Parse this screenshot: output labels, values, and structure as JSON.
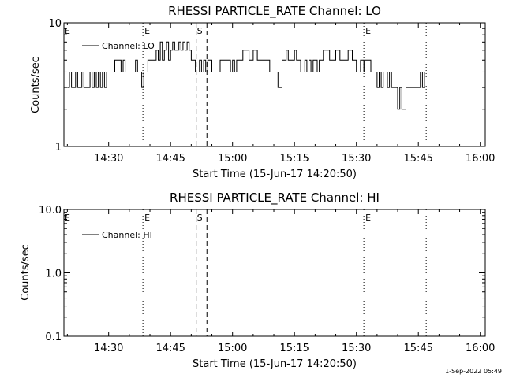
{
  "footer_timestamp": "1-Sep-2022 05:49",
  "chart_data": [
    {
      "type": "line",
      "title": "RHESSI PARTICLE_RATE Channel: LO",
      "xlabel": "Start Time (15-Jun-17 14:20:50)",
      "ylabel": "Counts/sec",
      "yscale": "log",
      "ylim": [
        1,
        10
      ],
      "xlim_minutes": [
        -0.83,
        87.0
      ],
      "xticks": [
        {
          "minutes": 10,
          "label": "14:30"
        },
        {
          "minutes": 25,
          "label": "14:45"
        },
        {
          "minutes": 40,
          "label": "15:00"
        },
        {
          "minutes": 55,
          "label": "15:15"
        },
        {
          "minutes": 70,
          "label": "15:30"
        },
        {
          "minutes": 85,
          "label": "15:45"
        },
        {
          "minutes": 100,
          "label": "16:00"
        }
      ],
      "yticks": [
        {
          "value": 1,
          "label": "1"
        },
        {
          "value": 10,
          "label": "10"
        }
      ],
      "legend": {
        "label": "Channel: LO",
        "position": "top-left"
      },
      "markers": [
        {
          "minutes": 18.3,
          "style": "dotted",
          "label": "E"
        },
        {
          "minutes": 71.8,
          "style": "dotted",
          "label": "E"
        },
        {
          "minutes": 86.9,
          "style": "dotted",
          "label": ""
        },
        {
          "minutes": 31.2,
          "style": "dashed",
          "label": "S"
        },
        {
          "minutes": 33.8,
          "style": "dashed",
          "label": ""
        }
      ],
      "series": [
        {
          "name": "Channel: LO",
          "x": [
            0,
            0.5,
            1,
            1.5,
            2,
            2.5,
            3,
            3.5,
            4,
            4.5,
            5,
            5.5,
            6,
            6.5,
            7,
            7.5,
            8,
            8.5,
            9,
            9.5,
            10,
            10.5,
            11,
            11.5,
            12,
            12.5,
            13,
            13.5,
            14,
            14.5,
            15,
            15.5,
            16,
            16.5,
            17,
            17.5,
            18,
            18.3,
            18.5,
            19,
            19.5,
            20,
            20.5,
            21,
            21.5,
            22,
            22.5,
            23,
            23.5,
            24,
            24.5,
            25,
            25.5,
            26,
            26.5,
            27,
            27.5,
            28,
            28.5,
            29,
            29.5,
            30,
            30.5,
            31,
            31.5,
            32,
            32.5,
            33,
            33.5,
            34,
            35,
            36,
            36.5,
            37,
            37.5,
            38,
            39,
            39.5,
            40,
            40.5,
            41,
            41.5,
            42,
            42.5,
            43,
            44,
            45,
            46,
            46.5,
            47,
            47.5,
            48,
            49,
            49.5,
            50,
            51,
            52,
            52.5,
            53,
            53.5,
            54,
            55,
            55.5,
            56,
            56.5,
            57,
            57.5,
            58,
            58.5,
            59,
            59.5,
            60,
            60.5,
            61,
            61.5,
            62,
            63,
            63.5,
            64,
            65,
            66,
            66.5,
            67,
            67.5,
            68,
            69,
            70,
            71,
            71.8,
            72,
            72.5,
            73,
            73.5,
            74,
            74.5,
            75,
            75.5,
            76,
            76.5,
            77,
            77.5,
            78,
            78.5,
            79,
            79.5,
            80,
            80.5,
            81,
            82,
            83,
            84,
            84.5,
            85,
            85.5,
            86,
            86.5
          ],
          "y": [
            3,
            4,
            3,
            3,
            4,
            3,
            3,
            4,
            3,
            3,
            3,
            4,
            3,
            4,
            3,
            4,
            3,
            4,
            3,
            4,
            4,
            4,
            4,
            5,
            5,
            5,
            4,
            5,
            4,
            4,
            4,
            4,
            4,
            5,
            4,
            4,
            3,
            3,
            4,
            4,
            5,
            5,
            5,
            5,
            6,
            5,
            7,
            5,
            6,
            7,
            5,
            6,
            7,
            6,
            6,
            7,
            6,
            7,
            6,
            7,
            6,
            5,
            5,
            4,
            4,
            5,
            4,
            5,
            4,
            5,
            4,
            4,
            4,
            5,
            5,
            5,
            5,
            4,
            5,
            4,
            5,
            5,
            5,
            6,
            6,
            5,
            6,
            5,
            5,
            5,
            5,
            5,
            4,
            4,
            4,
            3,
            5,
            5,
            6,
            5,
            5,
            6,
            5,
            5,
            4,
            4,
            5,
            4,
            5,
            4,
            5,
            5,
            4,
            5,
            5,
            6,
            6,
            5,
            5,
            6,
            5,
            5,
            5,
            5,
            6,
            5,
            4,
            5,
            4,
            5,
            5,
            5,
            4,
            4,
            4,
            3,
            4,
            3,
            4,
            4,
            3,
            4,
            3,
            3,
            3,
            2,
            3,
            2,
            3,
            3,
            3,
            3,
            3,
            4,
            3,
            4
          ]
        }
      ]
    },
    {
      "type": "line",
      "title": "RHESSI PARTICLE_RATE Channel: HI",
      "xlabel": "Start Time (15-Jun-17 14:20:50)",
      "ylabel": "Counts/sec",
      "yscale": "log",
      "ylim": [
        0.1,
        10
      ],
      "xlim_minutes": [
        -0.83,
        87.0
      ],
      "xticks": [
        {
          "minutes": 10,
          "label": "14:30"
        },
        {
          "minutes": 25,
          "label": "14:45"
        },
        {
          "minutes": 40,
          "label": "15:00"
        },
        {
          "minutes": 55,
          "label": "15:15"
        },
        {
          "minutes": 70,
          "label": "15:30"
        },
        {
          "minutes": 85,
          "label": "15:45"
        },
        {
          "minutes": 100,
          "label": "16:00"
        }
      ],
      "yticks": [
        {
          "value": 0.1,
          "label": "0.1"
        },
        {
          "value": 1,
          "label": "1.0"
        },
        {
          "value": 10,
          "label": "10.0"
        }
      ],
      "legend": {
        "label": "Channel: HI",
        "position": "top-left"
      },
      "markers": [
        {
          "minutes": 18.3,
          "style": "dotted",
          "label": "E"
        },
        {
          "minutes": 71.8,
          "style": "dotted",
          "label": "E"
        },
        {
          "minutes": 86.9,
          "style": "dotted",
          "label": ""
        },
        {
          "minutes": 31.2,
          "style": "dashed",
          "label": "S"
        },
        {
          "minutes": 33.8,
          "style": "dashed",
          "label": ""
        }
      ],
      "series": [
        {
          "name": "Channel: HI",
          "x": [],
          "y": []
        }
      ]
    }
  ]
}
